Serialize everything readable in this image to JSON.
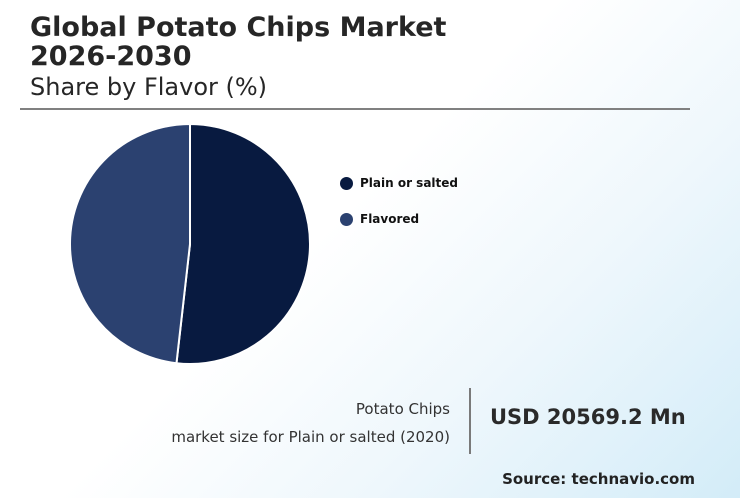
{
  "header": {
    "title_line1": "Global Potato Chips Market",
    "title_line2": "2026-2030",
    "subtitle": "Share by Flavor (%)"
  },
  "chart_data": {
    "type": "pie",
    "title": "Share by Flavor (%)",
    "categories": [
      "Plain or salted",
      "Flavored"
    ],
    "values": [
      51.8,
      48.2
    ],
    "colors": [
      "#081a40",
      "#2b4170"
    ],
    "start_angle_deg": 0,
    "direction": "clockwise",
    "slice_border_color": "#ffffff",
    "legend_position": "right"
  },
  "stat": {
    "label_line1": "Potato Chips",
    "label_line2": "market size for Plain or salted (2020)",
    "value": "USD 20569.2 Mn"
  },
  "footer": {
    "source": "Source: technavio.com"
  }
}
